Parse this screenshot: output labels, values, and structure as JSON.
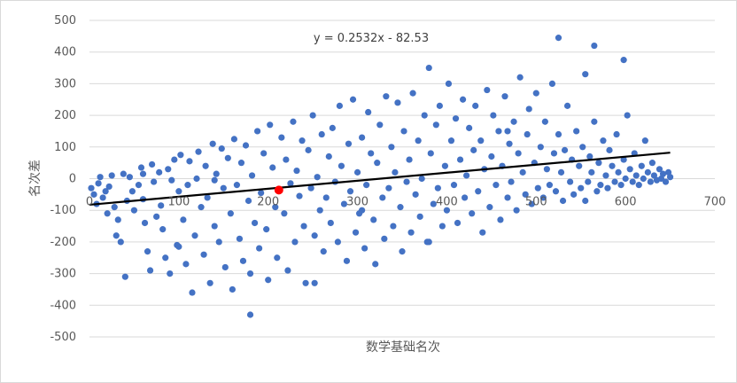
{
  "chart_data": {
    "type": "scatter",
    "title": "",
    "xlabel": "数学基础名次",
    "ylabel": "名次差",
    "xlim": [
      0,
      700
    ],
    "ylim": [
      -500,
      500
    ],
    "x_ticks": [
      "0",
      "100",
      "200",
      "300",
      "400",
      "500",
      "600",
      "700"
    ],
    "y_ticks": [
      "500",
      "400",
      "300",
      "200",
      "100",
      "0",
      "-100",
      "-200",
      "-300",
      "-400",
      "-500"
    ],
    "grid": "horizontal",
    "trendline": {
      "label": "y = 0.2532x - 82.53",
      "slope": 0.2532,
      "intercept": -82.53,
      "color": "#000000"
    },
    "colors": {
      "points": "#4472c4",
      "highlight": "#ff0000",
      "gridline": "#d9d9d9"
    },
    "highlight_point": {
      "x": 212,
      "y": -36
    },
    "series": [
      {
        "points": [
          [
            2,
            -30
          ],
          [
            5,
            -50
          ],
          [
            8,
            -80
          ],
          [
            10,
            -15
          ],
          [
            12,
            5
          ],
          [
            15,
            -60
          ],
          [
            18,
            -40
          ],
          [
            20,
            -110
          ],
          [
            22,
            -25
          ],
          [
            25,
            10
          ],
          [
            28,
            -90
          ],
          [
            30,
            -180
          ],
          [
            32,
            -130
          ],
          [
            35,
            -200
          ],
          [
            38,
            15
          ],
          [
            40,
            -310
          ],
          [
            42,
            -70
          ],
          [
            45,
            5
          ],
          [
            48,
            -40
          ],
          [
            50,
            -100
          ],
          [
            55,
            -20
          ],
          [
            58,
            35
          ],
          [
            60,
            -65
          ],
          [
            62,
            -140
          ],
          [
            65,
            -230
          ],
          [
            68,
            -290
          ],
          [
            70,
            45
          ],
          [
            72,
            -10
          ],
          [
            75,
            -120
          ],
          [
            78,
            20
          ],
          [
            80,
            -85
          ],
          [
            82,
            -160
          ],
          [
            85,
            -250
          ],
          [
            88,
            30
          ],
          [
            90,
            -300
          ],
          [
            92,
            -5
          ],
          [
            95,
            60
          ],
          [
            98,
            -210
          ],
          [
            100,
            -40
          ],
          [
            102,
            75
          ],
          [
            105,
            -130
          ],
          [
            108,
            -270
          ],
          [
            110,
            -20
          ],
          [
            112,
            55
          ],
          [
            115,
            -360
          ],
          [
            118,
            -180
          ],
          [
            120,
            0
          ],
          [
            122,
            85
          ],
          [
            125,
            -90
          ],
          [
            128,
            -240
          ],
          [
            130,
            40
          ],
          [
            132,
            -60
          ],
          [
            135,
            -330
          ],
          [
            138,
            110
          ],
          [
            140,
            -150
          ],
          [
            142,
            15
          ],
          [
            145,
            -200
          ],
          [
            148,
            95
          ],
          [
            150,
            -30
          ],
          [
            152,
            -280
          ],
          [
            155,
            65
          ],
          [
            158,
            -110
          ],
          [
            160,
            -350
          ],
          [
            162,
            125
          ],
          [
            165,
            -20
          ],
          [
            168,
            -190
          ],
          [
            170,
            50
          ],
          [
            172,
            -260
          ],
          [
            175,
            105
          ],
          [
            178,
            -70
          ],
          [
            180,
            -300
          ],
          [
            182,
            10
          ],
          [
            185,
            -140
          ],
          [
            188,
            150
          ],
          [
            190,
            -220
          ],
          [
            192,
            -45
          ],
          [
            195,
            80
          ],
          [
            198,
            -160
          ],
          [
            200,
            -320
          ],
          [
            202,
            170
          ],
          [
            205,
            35
          ],
          [
            208,
            -90
          ],
          [
            210,
            -250
          ],
          [
            215,
            130
          ],
          [
            218,
            -110
          ],
          [
            220,
            60
          ],
          [
            222,
            -290
          ],
          [
            225,
            -15
          ],
          [
            228,
            180
          ],
          [
            230,
            -200
          ],
          [
            232,
            25
          ],
          [
            235,
            -55
          ],
          [
            238,
            120
          ],
          [
            240,
            -150
          ],
          [
            242,
            -330
          ],
          [
            245,
            90
          ],
          [
            248,
            -30
          ],
          [
            250,
            200
          ],
          [
            252,
            -180
          ],
          [
            255,
            5
          ],
          [
            258,
            -100
          ],
          [
            260,
            140
          ],
          [
            262,
            -230
          ],
          [
            265,
            -60
          ],
          [
            268,
            70
          ],
          [
            270,
            -140
          ],
          [
            272,
            160
          ],
          [
            275,
            -10
          ],
          [
            278,
            -200
          ],
          [
            280,
            230
          ],
          [
            282,
            40
          ],
          [
            285,
            -80
          ],
          [
            288,
            -260
          ],
          [
            290,
            110
          ],
          [
            292,
            -40
          ],
          [
            295,
            250
          ],
          [
            298,
            -170
          ],
          [
            300,
            20
          ],
          [
            302,
            -110
          ],
          [
            305,
            130
          ],
          [
            308,
            -220
          ],
          [
            310,
            -20
          ],
          [
            312,
            210
          ],
          [
            315,
            80
          ],
          [
            318,
            -130
          ],
          [
            320,
            -270
          ],
          [
            322,
            50
          ],
          [
            325,
            170
          ],
          [
            328,
            -60
          ],
          [
            330,
            -190
          ],
          [
            332,
            260
          ],
          [
            335,
            -30
          ],
          [
            338,
            100
          ],
          [
            340,
            -150
          ],
          [
            342,
            20
          ],
          [
            345,
            240
          ],
          [
            348,
            -90
          ],
          [
            350,
            -230
          ],
          [
            352,
            150
          ],
          [
            355,
            -10
          ],
          [
            358,
            60
          ],
          [
            360,
            -170
          ],
          [
            362,
            270
          ],
          [
            365,
            -50
          ],
          [
            368,
            120
          ],
          [
            370,
            -120
          ],
          [
            372,
            0
          ],
          [
            375,
            200
          ],
          [
            378,
            -200
          ],
          [
            380,
            350
          ],
          [
            382,
            80
          ],
          [
            385,
            -80
          ],
          [
            388,
            170
          ],
          [
            390,
            -30
          ],
          [
            392,
            230
          ],
          [
            395,
            -150
          ],
          [
            398,
            40
          ],
          [
            400,
            -100
          ],
          [
            402,
            300
          ],
          [
            405,
            120
          ],
          [
            408,
            -20
          ],
          [
            410,
            190
          ],
          [
            412,
            -140
          ],
          [
            415,
            60
          ],
          [
            418,
            250
          ],
          [
            420,
            -60
          ],
          [
            422,
            10
          ],
          [
            425,
            160
          ],
          [
            428,
            -110
          ],
          [
            430,
            90
          ],
          [
            432,
            230
          ],
          [
            435,
            -40
          ],
          [
            438,
            120
          ],
          [
            440,
            -170
          ],
          [
            442,
            30
          ],
          [
            445,
            280
          ],
          [
            448,
            -90
          ],
          [
            450,
            70
          ],
          [
            452,
            200
          ],
          [
            455,
            -20
          ],
          [
            458,
            150
          ],
          [
            460,
            -130
          ],
          [
            462,
            40
          ],
          [
            465,
            260
          ],
          [
            468,
            -60
          ],
          [
            470,
            110
          ],
          [
            472,
            -10
          ],
          [
            475,
            180
          ],
          [
            478,
            -100
          ],
          [
            480,
            80
          ],
          [
            482,
            320
          ],
          [
            485,
            20
          ],
          [
            488,
            -50
          ],
          [
            490,
            140
          ],
          [
            492,
            220
          ],
          [
            495,
            -80
          ],
          [
            498,
            50
          ],
          [
            500,
            270
          ],
          [
            502,
            -30
          ],
          [
            505,
            100
          ],
          [
            508,
            -60
          ],
          [
            510,
            180
          ],
          [
            512,
            30
          ],
          [
            515,
            -20
          ],
          [
            518,
            300
          ],
          [
            520,
            80
          ],
          [
            522,
            -40
          ],
          [
            525,
            140
          ],
          [
            528,
            20
          ],
          [
            530,
            -70
          ],
          [
            532,
            90
          ],
          [
            535,
            230
          ],
          [
            538,
            -10
          ],
          [
            540,
            60
          ],
          [
            542,
            -50
          ],
          [
            545,
            150
          ],
          [
            548,
            40
          ],
          [
            550,
            -30
          ],
          [
            552,
            100
          ],
          [
            555,
            330
          ],
          [
            558,
            -10
          ],
          [
            560,
            70
          ],
          [
            562,
            20
          ],
          [
            565,
            180
          ],
          [
            568,
            -40
          ],
          [
            570,
            50
          ],
          [
            572,
            -20
          ],
          [
            575,
            120
          ],
          [
            578,
            10
          ],
          [
            580,
            -30
          ],
          [
            582,
            90
          ],
          [
            585,
            40
          ],
          [
            588,
            -10
          ],
          [
            590,
            140
          ],
          [
            592,
            20
          ],
          [
            595,
            -20
          ],
          [
            598,
            60
          ],
          [
            600,
            0
          ],
          [
            602,
            200
          ],
          [
            605,
            30
          ],
          [
            608,
            -10
          ],
          [
            610,
            80
          ],
          [
            612,
            10
          ],
          [
            615,
            -20
          ],
          [
            618,
            40
          ],
          [
            620,
            0
          ],
          [
            622,
            120
          ],
          [
            625,
            20
          ],
          [
            628,
            -10
          ],
          [
            630,
            50
          ],
          [
            632,
            10
          ],
          [
            635,
            -5
          ],
          [
            638,
            30
          ],
          [
            640,
            0
          ],
          [
            642,
            15
          ],
          [
            645,
            -10
          ],
          [
            648,
            20
          ],
          [
            650,
            5
          ],
          [
            525,
            445
          ],
          [
            565,
            420
          ],
          [
            598,
            375
          ],
          [
            380,
            -200
          ],
          [
            180,
            -430
          ],
          [
            252,
            -330
          ],
          [
            100,
            -215
          ],
          [
            60,
            15
          ],
          [
            140,
            -5
          ],
          [
            305,
            -100
          ],
          [
            468,
            150
          ],
          [
            555,
            -70
          ]
        ]
      }
    ]
  }
}
